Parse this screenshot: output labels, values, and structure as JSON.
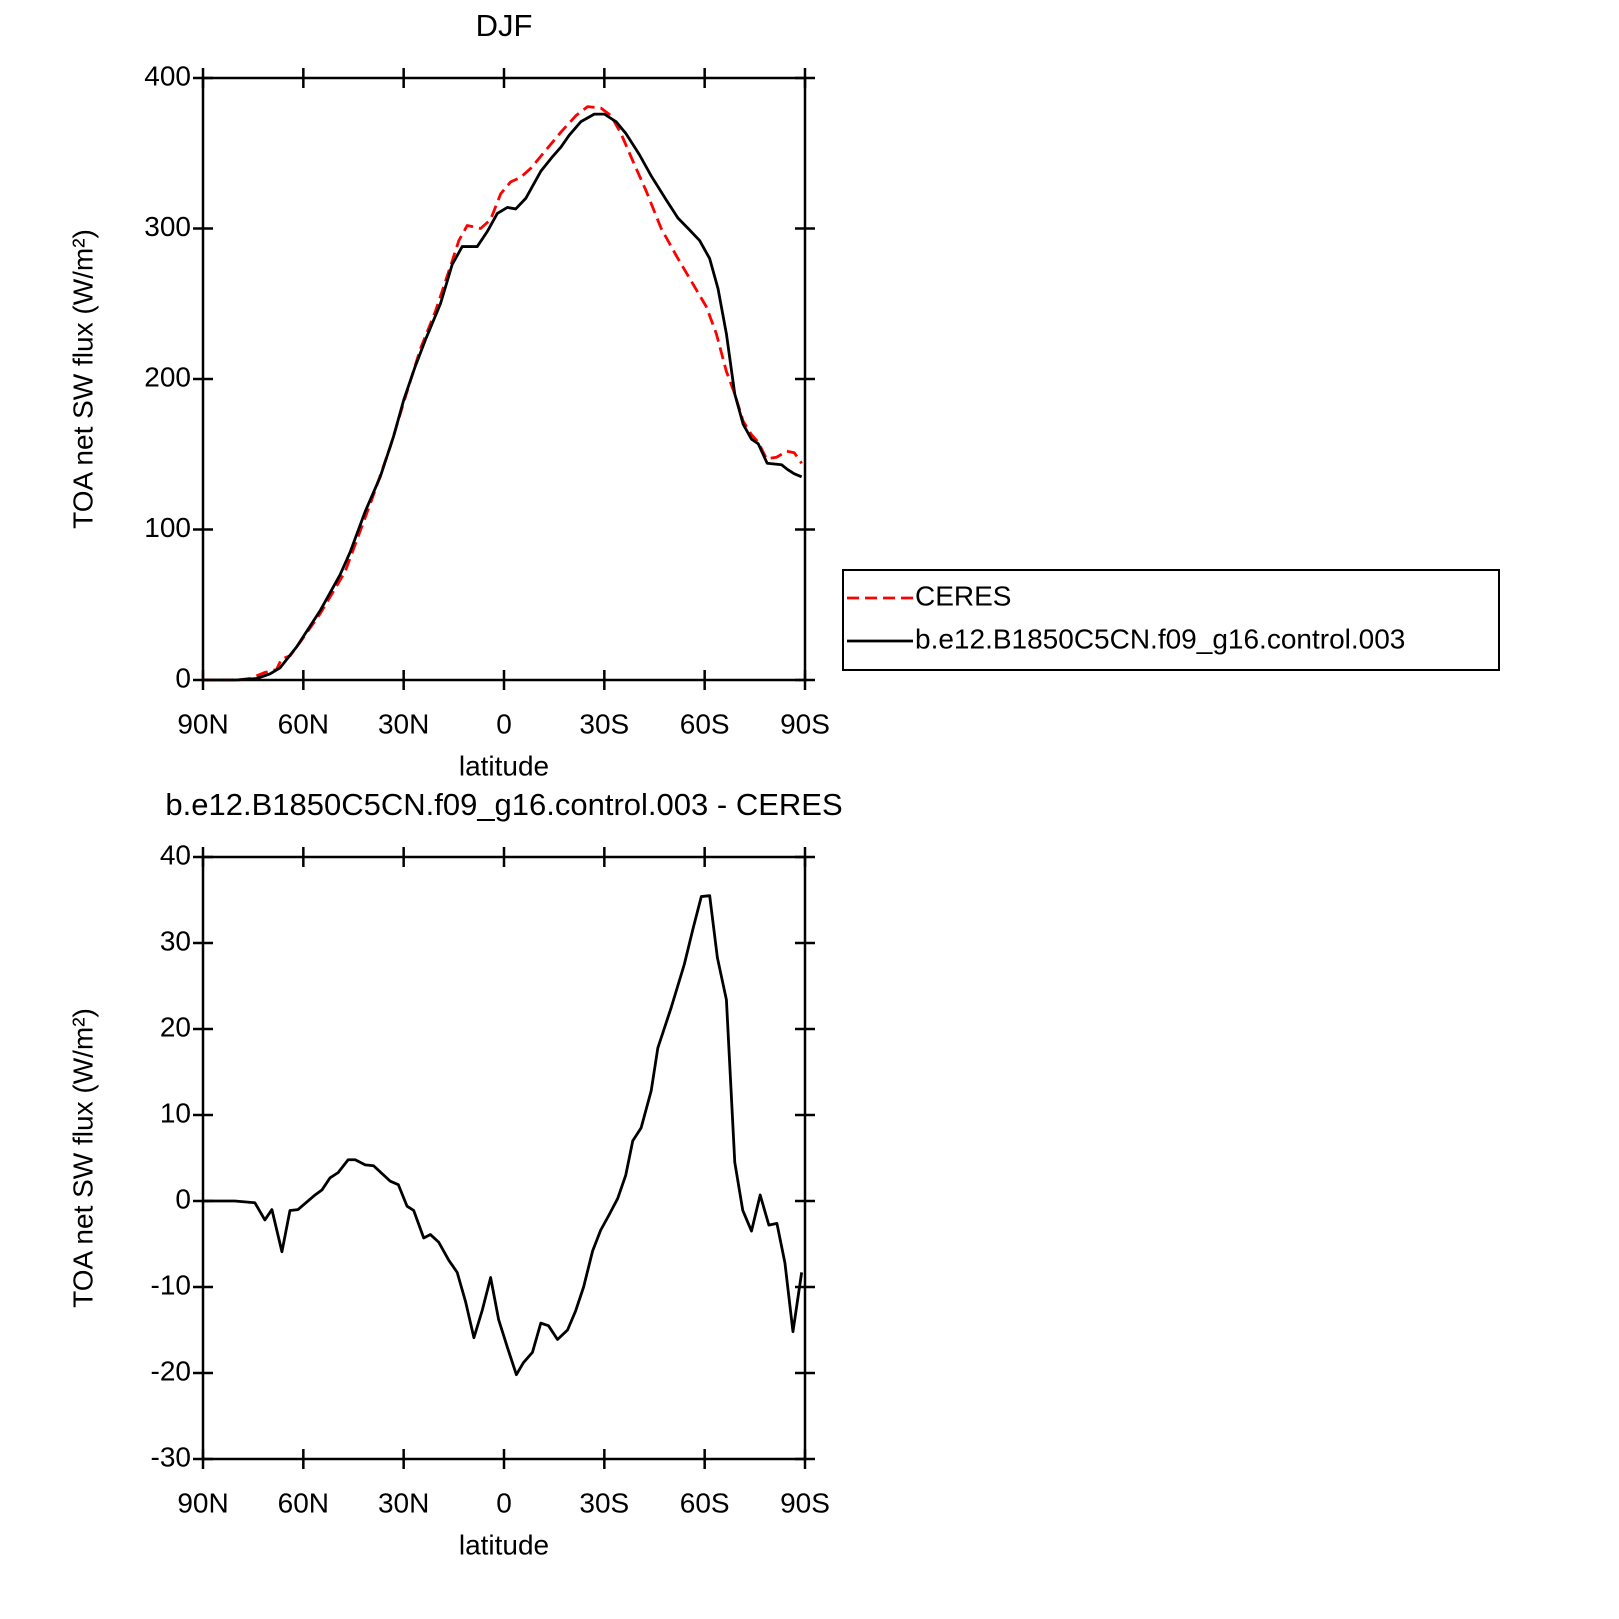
{
  "chart_data": [
    {
      "type": "line",
      "title": "DJF",
      "xlabel": "latitude",
      "ylabel": "TOA net SW flux (W/m²)",
      "xlim": [
        90,
        -90
      ],
      "xticks": [
        {
          "value": 90,
          "label": "90N"
        },
        {
          "value": 60,
          "label": "60N"
        },
        {
          "value": 30,
          "label": "30N"
        },
        0,
        {
          "value": -30,
          "label": "30S"
        },
        {
          "value": -60,
          "label": "60S"
        },
        {
          "value": -90,
          "label": "90S"
        }
      ],
      "ylim": [
        0,
        400
      ],
      "yticks": [
        0,
        100,
        200,
        300,
        400
      ],
      "legend": "right",
      "series": [
        {
          "name": "CERES",
          "color": "#ff0000",
          "dash": true,
          "x": [
            90,
            80,
            76,
            71.5,
            68,
            66.5,
            64,
            61,
            55,
            47.5,
            44.5,
            39.5,
            34,
            29.5,
            25,
            20.5,
            16,
            13.5,
            11,
            7,
            4,
            1,
            -2,
            -5,
            -8,
            -12.5,
            -17,
            -21.5,
            -25,
            -29,
            -32,
            -35,
            -38.5,
            -42.5,
            -47,
            -51.5,
            -56,
            -60.5,
            -63.5,
            -66.5,
            -69,
            -71.5,
            -74,
            -76,
            -78.5,
            -81.5,
            -84.5,
            -86.8,
            -89
          ],
          "values": [
            0,
            0,
            1,
            5,
            7,
            14,
            16,
            25,
            44,
            72,
            90,
            120,
            155,
            188,
            220,
            245,
            275,
            292,
            302,
            300,
            306,
            323,
            331,
            334,
            340,
            352,
            364,
            375,
            381,
            380,
            375,
            363,
            345,
            325,
            300,
            282,
            265,
            248,
            230,
            205,
            190,
            172,
            163,
            158,
            147,
            148,
            152,
            151,
            144
          ]
        },
        {
          "name": "b.e12.B1850C5CN.f09_g16.control.003",
          "color": "#000000",
          "dash": false,
          "x": [
            90,
            80,
            74,
            70,
            67,
            62,
            55,
            49,
            46,
            41.5,
            37,
            33,
            30,
            26.6,
            23.5,
            19,
            15.5,
            12.5,
            8,
            5,
            2,
            -1,
            -3.5,
            -6.5,
            -11,
            -14.6,
            -17,
            -19.5,
            -23,
            -27,
            -30,
            -33.5,
            -36.5,
            -40.5,
            -44,
            -48.5,
            -52,
            -55.5,
            -58.5,
            -61.5,
            -64,
            -66.5,
            -69,
            -71.5,
            -74,
            -76,
            -78.7,
            -83,
            -84.7,
            -86.8,
            -89
          ],
          "values": [
            0,
            0,
            1,
            4,
            8,
            22,
            46,
            70,
            85,
            112,
            135,
            162,
            186,
            208,
            226,
            250,
            276,
            288,
            288,
            298,
            310,
            314,
            313,
            320,
            338,
            348,
            354,
            362,
            371,
            376,
            376,
            371,
            363,
            349,
            335,
            319,
            307,
            299,
            292,
            280,
            260,
            230,
            190,
            170,
            160,
            157,
            144,
            143,
            140,
            137,
            135
          ]
        }
      ]
    },
    {
      "type": "line",
      "title": "b.e12.B1850C5CN.f09_g16.control.003 - CERES",
      "xlabel": "latitude",
      "ylabel": "TOA net SW flux (W/m²)",
      "xlim": [
        90,
        -90
      ],
      "xticks": [
        {
          "value": 90,
          "label": "90N"
        },
        {
          "value": 60,
          "label": "60N"
        },
        {
          "value": 30,
          "label": "30N"
        },
        0,
        {
          "value": -30,
          "label": "30S"
        },
        {
          "value": -60,
          "label": "60S"
        },
        {
          "value": -90,
          "label": "90S"
        }
      ],
      "ylim": [
        -30,
        40
      ],
      "yticks": [
        -30,
        -20,
        -10,
        0,
        10,
        20,
        30,
        40
      ],
      "series": [
        {
          "color": "#000000",
          "dash": false,
          "x": [
            90,
            80.5,
            74.5,
            71.5,
            69.4,
            66.4,
            64,
            61.6,
            56.5,
            54.4,
            52,
            49.6,
            46.6,
            44.5,
            41.5,
            39,
            34,
            31.6,
            29,
            27,
            24,
            22,
            19.5,
            16.5,
            14,
            11.5,
            9,
            6.5,
            4,
            1.6,
            -1,
            -3.7,
            -5.8,
            -8.5,
            -11,
            -13.3,
            -16,
            -19,
            -21.4,
            -23.8,
            -26.5,
            -28.9,
            -31.3,
            -34,
            -36.4,
            -38.5,
            -41,
            -44,
            -46,
            -50,
            -53.9,
            -56.6,
            -59,
            -61.5,
            -63.8,
            -66.5,
            -69,
            -71.4,
            -74,
            -76.6,
            -79.2,
            -81.6,
            -84,
            -86.4,
            -89
          ],
          "values": [
            0,
            0,
            -0.2,
            -2.2,
            -1,
            -5.9,
            -1.1,
            -1,
            0.7,
            1.3,
            2.7,
            3.3,
            4.8,
            4.8,
            4.2,
            4.1,
            2.3,
            1.9,
            -0.6,
            -1.1,
            -4.3,
            -3.9,
            -4.8,
            -6.9,
            -8.3,
            -11.7,
            -15.9,
            -12.7,
            -8.9,
            -13.8,
            -17,
            -20.2,
            -18.8,
            -17.6,
            -14.2,
            -14.5,
            -16.1,
            -15,
            -12.8,
            -10,
            -5.8,
            -3.4,
            -1.7,
            0.3,
            3,
            7,
            8.5,
            12.8,
            17.8,
            22.5,
            27.5,
            31.8,
            35.4,
            35.5,
            28.3,
            23.4,
            4.5,
            -1.1,
            -3.5,
            0.7,
            -2.8,
            -2.6,
            -7.2,
            -15.2,
            -8.3
          ]
        }
      ]
    }
  ]
}
